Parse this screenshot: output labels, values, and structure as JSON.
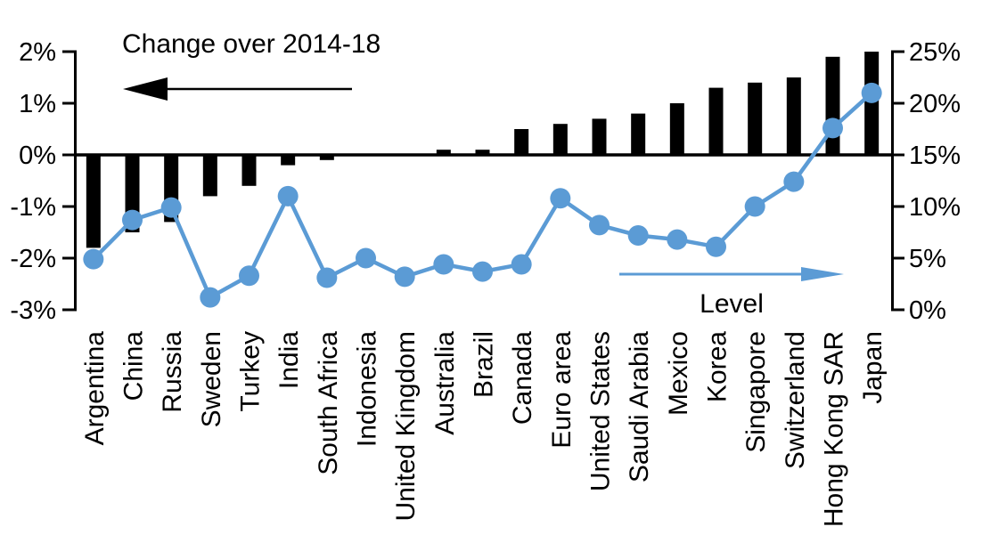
{
  "title": "Change over 2014-18",
  "legend": {
    "bars_label": "Change over 2014-18",
    "line_label": "Level"
  },
  "colors": {
    "bar": "#000000",
    "line": "#5B9BD5",
    "axis": "#000000",
    "text": "#000000",
    "background": "#FFFFFF"
  },
  "chart_data": {
    "type": "bar",
    "subtype": "dual-axis bar + line",
    "title": "Change over 2014-18 (bars, left axis) and Level (line, right axis)",
    "categories": [
      "Argentina",
      "China",
      "Russia",
      "Sweden",
      "Turkey",
      "India",
      "South Africa",
      "Indonesia",
      "United Kingdom",
      "Australia",
      "Brazil",
      "Canada",
      "Euro area",
      "United States",
      "Saudi Arabia",
      "Mexico",
      "Korea",
      "Singapore",
      "Switzerland",
      "Hong Kong SAR",
      "Japan"
    ],
    "series": [
      {
        "name": "Change over 2014-18",
        "type": "bar",
        "axis": "left",
        "values": [
          -1.8,
          -1.5,
          -1.3,
          -0.8,
          -0.6,
          -0.2,
          -0.1,
          0,
          0,
          0.1,
          0.1,
          0.5,
          0.6,
          0.7,
          0.8,
          1.0,
          1.3,
          1.4,
          1.5,
          1.9,
          2.0
        ]
      },
      {
        "name": "Level",
        "type": "line",
        "axis": "right",
        "values": [
          4.9,
          8.7,
          9.9,
          1.2,
          3.3,
          11.0,
          3.1,
          5.0,
          3.2,
          4.4,
          3.7,
          4.4,
          10.8,
          8.2,
          7.2,
          6.8,
          6.1,
          10.0,
          12.4,
          17.6,
          21.0
        ]
      }
    ],
    "left_axis": {
      "tick_values": [
        2,
        1,
        0,
        -1,
        -2,
        -3
      ],
      "tick_labels": [
        "2%",
        "1%",
        "0%",
        "-1%",
        "-2%",
        "-3%"
      ],
      "range": [
        -3,
        2
      ]
    },
    "right_axis": {
      "tick_values": [
        25,
        20,
        15,
        10,
        5,
        0
      ],
      "tick_labels": [
        "25%",
        "20%",
        "15%",
        "10%",
        "5%",
        "0%"
      ],
      "range": [
        0,
        25
      ]
    },
    "grid": false,
    "annotations": [
      {
        "text": "Change over 2014-18",
        "arrow_direction": "left",
        "arrow_color": "#000000"
      },
      {
        "text": "Level",
        "arrow_direction": "right",
        "arrow_color": "#5B9BD5"
      }
    ]
  }
}
